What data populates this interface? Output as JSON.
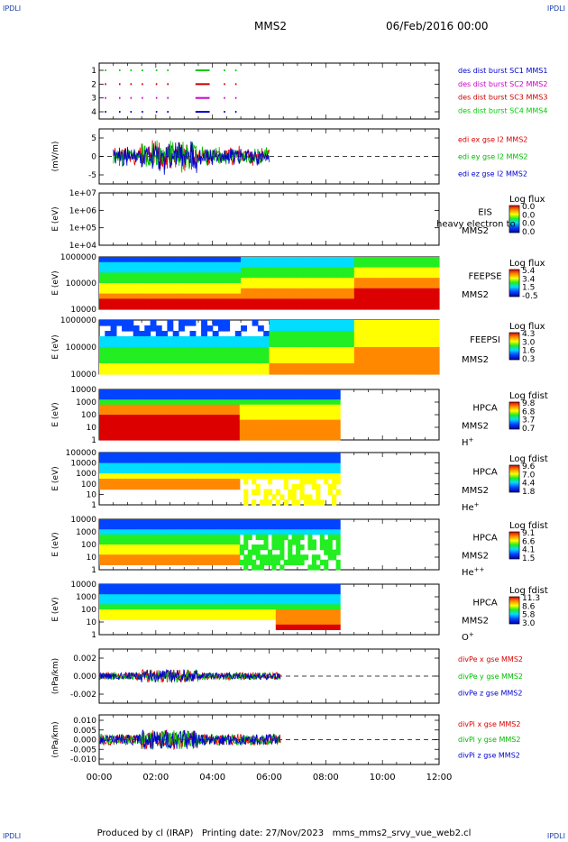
{
  "corner_label": "IPDLI",
  "header": {
    "satellite": "MMS2",
    "date": "06/Feb/2016 00:00"
  },
  "footer": {
    "producer": "Produced by cl (IRAP)",
    "print_date": "Printing date: 27/Nov/2023",
    "filename": "mms_mms2_srvy_vue_web2.cl"
  },
  "x_ticks": [
    "00:00",
    "02:00",
    "04:00",
    "06:00",
    "08:00",
    "10:00",
    "12:00"
  ],
  "colors": {
    "mms1": "#0000cc",
    "mms2": "#cc00cc",
    "mms3": "#cc0000",
    "mms4": "#00cc00",
    "x": "#dd0000",
    "y": "#00bb00",
    "z": "#0000cc"
  },
  "chart_data": [
    {
      "id": "burst",
      "type": "scatter",
      "ylabel": "",
      "yticks": [
        "1",
        "2",
        "3",
        "4"
      ],
      "legend": [
        {
          "label": "des dist burst SC1 MMS1",
          "color": "#0000cc"
        },
        {
          "label": "des dist burst SC2 MMS2",
          "color": "#cc00cc"
        },
        {
          "label": "des dist burst SC3 MMS3",
          "color": "#cc0000"
        },
        {
          "label": "des dist burst SC4 MMS4",
          "color": "#00cc00"
        }
      ],
      "intervals_hours": [
        [
          0.2,
          0.25
        ],
        [
          0.7,
          0.75
        ],
        [
          1.1,
          1.15
        ],
        [
          1.5,
          1.55
        ],
        [
          2.0,
          2.05
        ],
        [
          2.4,
          2.45
        ],
        [
          3.4,
          3.9
        ],
        [
          4.4,
          4.45
        ],
        [
          4.8,
          4.85
        ]
      ]
    },
    {
      "id": "edi",
      "type": "line",
      "ylabel": "(mV/m)",
      "yticks": [
        "5",
        "0",
        "-5"
      ],
      "ylim": [
        -7,
        7
      ],
      "data_range_hours": [
        0.5,
        6.0
      ],
      "legend": [
        {
          "label": "edi ex gse l2 MMS2",
          "color": "#dd0000"
        },
        {
          "label": "edi ey gse l2 MMS2",
          "color": "#00bb00"
        },
        {
          "label": "edi ez gse l2 MMS2",
          "color": "#0000cc"
        }
      ]
    },
    {
      "id": "eis",
      "type": "heatmap",
      "ylabel": "E (eV)",
      "yticks": [
        "1e+07",
        "1e+06",
        "1e+05",
        "1e+04"
      ],
      "instrument": "EIS",
      "sub": "MMS2",
      "overlay": "heavy electron to",
      "colorbar_title": "Log flux",
      "colorbar_ticks": [
        "0.0",
        "0.0",
        "0.0",
        "0.0"
      ]
    },
    {
      "id": "feepse",
      "type": "heatmap",
      "ylabel": "E (eV)",
      "yticks": [
        "1000000",
        "100000",
        "10000"
      ],
      "instrument": "FEEPSE",
      "sub": "MMS2",
      "colorbar_title": "Log flux",
      "colorbar_ticks": [
        "5.4",
        "3.4",
        "1.5",
        "-0.5"
      ],
      "data_range_hours": [
        0,
        12
      ]
    },
    {
      "id": "feepsi",
      "type": "heatmap",
      "ylabel": "E (eV)",
      "yticks": [
        "1000000",
        "100000",
        "10000"
      ],
      "instrument": "FEEPSI",
      "sub": "MMS2",
      "colorbar_title": "Log flux",
      "colorbar_ticks": [
        "4.3",
        "3.0",
        "1.6",
        "0.3"
      ],
      "data_range_hours": [
        0,
        12
      ]
    },
    {
      "id": "hpca_h",
      "type": "heatmap",
      "ylabel": "E (eV)",
      "yticks": [
        "10000",
        "1000",
        "100",
        "10",
        "1"
      ],
      "instrument": "HPCA",
      "sub": "MMS2",
      "species": "H",
      "species_sup": "+",
      "colorbar_title": "Log fdist",
      "colorbar_ticks": [
        "9.8",
        "6.8",
        "3.7",
        "0.7"
      ],
      "data_range_hours": [
        0,
        8.5
      ]
    },
    {
      "id": "hpca_he",
      "type": "heatmap",
      "ylabel": "E (eV)",
      "yticks": [
        "100000",
        "10000",
        "1000",
        "100",
        "10",
        "1"
      ],
      "instrument": "HPCA",
      "sub": "MMS2",
      "species": "He",
      "species_sup": "+",
      "colorbar_title": "Log fdist",
      "colorbar_ticks": [
        "9.6",
        "7.0",
        "4.4",
        "1.8"
      ],
      "data_range_hours": [
        0,
        8.5
      ]
    },
    {
      "id": "hpca_hepp",
      "type": "heatmap",
      "ylabel": "E (eV)",
      "yticks": [
        "10000",
        "1000",
        "100",
        "10",
        "1"
      ],
      "instrument": "HPCA",
      "sub": "MMS2",
      "species": "He",
      "species_sup": "++",
      "colorbar_title": "Log fdist",
      "colorbar_ticks": [
        "9.1",
        "6.6",
        "4.1",
        "1.5"
      ],
      "data_range_hours": [
        0,
        8.5
      ]
    },
    {
      "id": "hpca_o",
      "type": "heatmap",
      "ylabel": "E (eV)",
      "yticks": [
        "10000",
        "1000",
        "100",
        "10",
        "1"
      ],
      "instrument": "HPCA",
      "sub": "MMS2",
      "species": "O",
      "species_sup": "+",
      "colorbar_title": "Log fdist",
      "colorbar_ticks": [
        "11.3",
        "8.6",
        "5.8",
        "3.0"
      ],
      "data_range_hours": [
        0,
        8.5
      ]
    },
    {
      "id": "divpe",
      "type": "line",
      "ylabel": "(nPa/km)",
      "yticks": [
        "0.002",
        "0.000",
        "-0.002"
      ],
      "ylim": [
        -0.0035,
        0.0035
      ],
      "data_range_hours": [
        0,
        6.4
      ],
      "legend": [
        {
          "label": "divPe x gse MMS2",
          "color": "#dd0000"
        },
        {
          "label": "divPe y gse MMS2",
          "color": "#00bb00"
        },
        {
          "label": "divPe z gse MMS2",
          "color": "#0000cc"
        }
      ]
    },
    {
      "id": "divpi",
      "type": "line",
      "ylabel": "(nPa/km)",
      "yticks": [
        "0.010",
        "0.005",
        "0.000",
        "-0.005",
        "-0.010"
      ],
      "ylim": [
        -0.012,
        0.012
      ],
      "data_range_hours": [
        0,
        6.4
      ],
      "legend": [
        {
          "label": "divPi x gse MMS2",
          "color": "#dd0000"
        },
        {
          "label": "divPi y gse MMS2",
          "color": "#00bb00"
        },
        {
          "label": "divPi z gse MMS2",
          "color": "#0000cc"
        }
      ]
    }
  ]
}
